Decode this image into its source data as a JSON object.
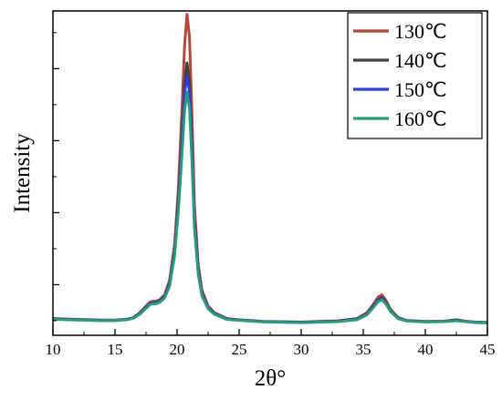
{
  "chart_data": {
    "type": "line",
    "xlabel": "2θ°",
    "ylabel": "Intensity",
    "xlim": [
      10,
      45
    ],
    "xticks": [
      10,
      15,
      20,
      25,
      30,
      35,
      40,
      45
    ],
    "xtick_labels": [
      "10",
      "15",
      "20",
      "25",
      "30",
      "35",
      "40",
      "45"
    ],
    "ylim": [
      0,
      100
    ],
    "yticks_shown": false,
    "legend_position": "top-right",
    "series": [
      {
        "name": "130℃",
        "color": "#b5473a",
        "x": [
          10,
          12,
          14,
          15,
          16,
          16.5,
          17,
          17.5,
          17.8,
          18,
          18.3,
          18.6,
          19,
          19.4,
          19.8,
          20.1,
          20.4,
          20.6,
          20.8,
          21.0,
          21.2,
          21.4,
          21.7,
          22,
          22.5,
          23,
          24,
          25,
          27,
          30,
          33,
          34.5,
          35.3,
          35.8,
          36.2,
          36.5,
          36.8,
          37.2,
          37.8,
          38.5,
          40,
          41.5,
          42.5,
          43.2,
          44,
          45
        ],
        "y": [
          5.2,
          4.9,
          4.7,
          4.7,
          5.0,
          5.5,
          7.0,
          9.0,
          10.2,
          10.5,
          10.5,
          11.0,
          12.5,
          17.0,
          28.0,
          45.0,
          70.0,
          89.0,
          99.0,
          92.0,
          68.0,
          40.0,
          22.0,
          14.0,
          9.0,
          7.0,
          5.2,
          4.8,
          4.3,
          4.1,
          4.5,
          5.2,
          7.0,
          9.5,
          11.8,
          12.5,
          11.0,
          8.0,
          5.5,
          4.6,
          4.3,
          4.4,
          4.8,
          4.4,
          4.1,
          4.0
        ]
      },
      {
        "name": "140℃",
        "color": "#404040",
        "x": [
          10,
          12,
          14,
          15,
          16,
          16.5,
          17,
          17.5,
          17.8,
          18,
          18.3,
          18.6,
          19,
          19.4,
          19.8,
          20.1,
          20.4,
          20.6,
          20.8,
          21.0,
          21.2,
          21.4,
          21.7,
          22,
          22.5,
          23,
          24,
          25,
          27,
          30,
          33,
          34.5,
          35.3,
          35.8,
          36.2,
          36.5,
          36.8,
          37.2,
          37.8,
          38.5,
          40,
          41.5,
          42.5,
          43.2,
          44,
          45
        ],
        "y": [
          5.0,
          4.8,
          4.6,
          4.6,
          4.9,
          5.4,
          6.8,
          8.7,
          9.8,
          10.1,
          10.1,
          10.6,
          12.0,
          16.0,
          26.0,
          41.0,
          62.0,
          77.0,
          84.0,
          78.0,
          59.0,
          36.0,
          20.5,
          13.0,
          8.6,
          6.8,
          5.1,
          4.7,
          4.2,
          4.0,
          4.4,
          5.0,
          6.6,
          9.0,
          11.0,
          11.6,
          10.3,
          7.6,
          5.3,
          4.5,
          4.2,
          4.3,
          4.7,
          4.3,
          4.0,
          3.9
        ]
      },
      {
        "name": "150℃",
        "color": "#2f3fd6",
        "x": [
          10,
          12,
          14,
          15,
          16,
          16.5,
          17,
          17.5,
          17.8,
          18,
          18.3,
          18.6,
          19,
          19.4,
          19.8,
          20.1,
          20.4,
          20.6,
          20.8,
          21.0,
          21.2,
          21.4,
          21.7,
          22,
          22.5,
          23,
          24,
          25,
          27,
          30,
          33,
          34.5,
          35.3,
          35.8,
          36.2,
          36.5,
          36.8,
          37.2,
          37.8,
          38.5,
          40,
          41.5,
          42.5,
          43.2,
          44,
          45
        ],
        "y": [
          5.0,
          4.8,
          4.6,
          4.6,
          4.9,
          5.4,
          6.7,
          8.6,
          9.7,
          10.0,
          10.0,
          10.5,
          11.8,
          15.8,
          25.5,
          40.0,
          60.0,
          74.5,
          80.0,
          75.0,
          57.0,
          35.0,
          20.0,
          12.8,
          8.5,
          6.7,
          5.0,
          4.7,
          4.2,
          4.0,
          4.3,
          4.9,
          6.5,
          8.8,
          10.8,
          11.3,
          10.1,
          7.5,
          5.2,
          4.5,
          4.2,
          4.3,
          4.6,
          4.3,
          4.0,
          3.9
        ]
      },
      {
        "name": "160℃",
        "color": "#2a9b78",
        "x": [
          10,
          12,
          14,
          15,
          16,
          16.5,
          17,
          17.5,
          17.8,
          18,
          18.3,
          18.6,
          19,
          19.4,
          19.8,
          20.1,
          20.4,
          20.6,
          20.8,
          21.0,
          21.2,
          21.4,
          21.7,
          22,
          22.5,
          23,
          24,
          25,
          27,
          30,
          33,
          34.5,
          35.3,
          35.8,
          36.2,
          36.5,
          36.8,
          37.2,
          37.8,
          38.5,
          40,
          41.5,
          42.5,
          43.2,
          44,
          45
        ],
        "y": [
          4.9,
          4.7,
          4.5,
          4.5,
          4.8,
          5.3,
          6.5,
          8.3,
          9.4,
          9.7,
          9.7,
          10.2,
          11.5,
          15.2,
          24.5,
          38.0,
          56.0,
          69.0,
          75.0,
          70.0,
          53.5,
          33.0,
          19.0,
          12.2,
          8.2,
          6.5,
          4.9,
          4.6,
          4.1,
          3.9,
          4.2,
          4.8,
          6.3,
          8.5,
          10.4,
          10.9,
          9.8,
          7.3,
          5.1,
          4.4,
          4.1,
          4.2,
          4.5,
          4.2,
          3.9,
          3.8
        ]
      }
    ]
  }
}
